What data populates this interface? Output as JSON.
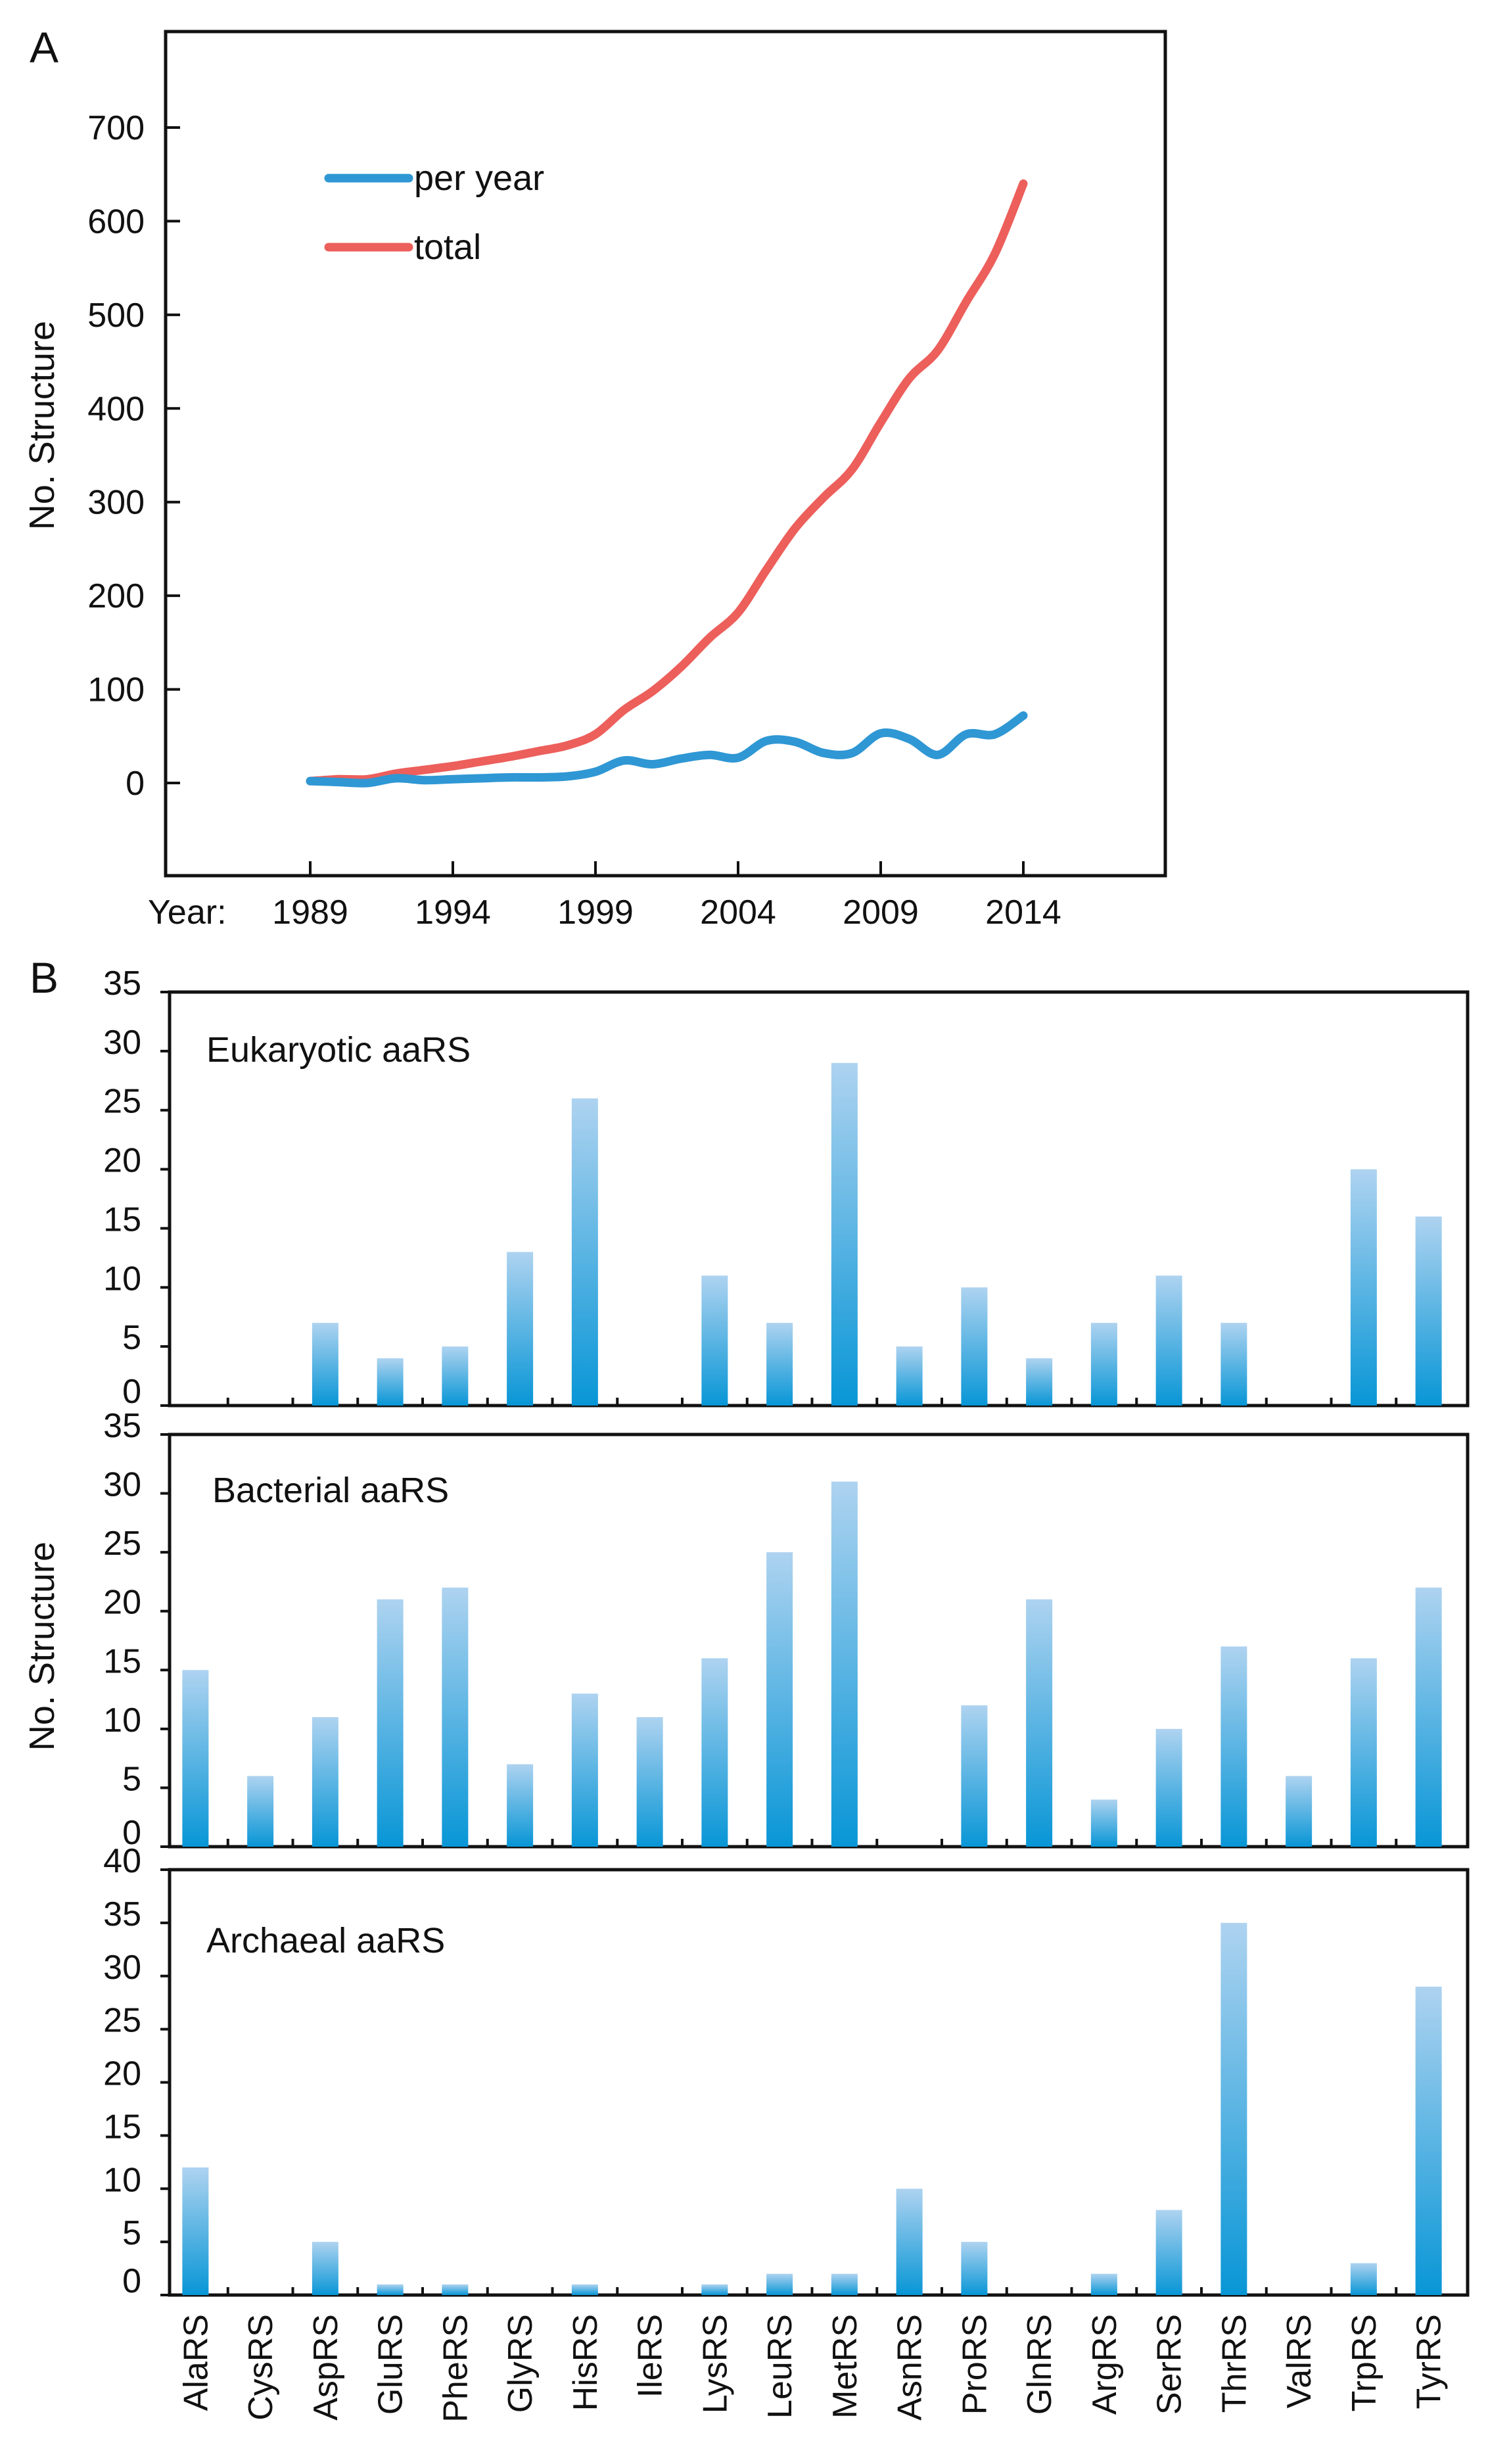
{
  "chart_data": [
    {
      "type": "line",
      "panel_label": "A",
      "ylabel": "No. Structure",
      "xlabel_prefix": "Year:",
      "x": [
        1989,
        1990,
        1991,
        1992,
        1993,
        1994,
        1995,
        1996,
        1997,
        1998,
        1999,
        2000,
        2001,
        2002,
        2003,
        2004,
        2005,
        2006,
        2007,
        2008,
        2009,
        2010,
        2011,
        2012,
        2013,
        2014
      ],
      "xticks": [
        "1989",
        "1994",
        "1999",
        "2004",
        "2009",
        "2014"
      ],
      "yticks": [
        "0",
        "100",
        "200",
        "300",
        "400",
        "500",
        "600",
        "700"
      ],
      "ylim": [
        -100,
        800
      ],
      "xlim": [
        1984,
        2019
      ],
      "legend_position": "top-left",
      "series": [
        {
          "name": "per year",
          "color": "#2f97d4",
          "values": [
            2,
            1,
            0,
            5,
            3,
            4,
            5,
            6,
            6,
            7,
            12,
            24,
            20,
            26,
            30,
            27,
            45,
            44,
            32,
            32,
            53,
            47,
            30,
            52,
            52,
            72
          ]
        },
        {
          "name": "total",
          "color": "#ec5f5b",
          "values": [
            2,
            4,
            4,
            10,
            14,
            18,
            23,
            28,
            34,
            40,
            52,
            78,
            98,
            124,
            155,
            182,
            228,
            272,
            305,
            335,
            385,
            432,
            462,
            514,
            565,
            640
          ]
        }
      ]
    },
    {
      "type": "bar",
      "panel_label": "B",
      "ylabel": "No. Structure",
      "categories": [
        "AlaRS",
        "CysRS",
        "AspRS",
        "GluRS",
        "PheRS",
        "GlyRS",
        "HisRS",
        "IleRS",
        "LysRS",
        "LeuRS",
        "MetRS",
        "AsnRS",
        "ProRS",
        "GlnRS",
        "ArgRS",
        "SerRS",
        "ThrRS",
        "ValRS",
        "TrpRS",
        "TyrRS"
      ],
      "bar_color_top": "#aed3f0",
      "bar_color_bottom": "#0896d6",
      "subplots": [
        {
          "title": "Eukaryotic aaRS",
          "ylim": [
            0,
            35
          ],
          "yticks": [
            "0",
            "5",
            "10",
            "15",
            "20",
            "25",
            "30",
            "35"
          ],
          "values": [
            0,
            0,
            7,
            4,
            5,
            13,
            26,
            0,
            11,
            7,
            29,
            5,
            10,
            4,
            7,
            11,
            7,
            0,
            20,
            16
          ]
        },
        {
          "title": "Bacterial aaRS",
          "ylim": [
            0,
            35
          ],
          "yticks": [
            "0",
            "5",
            "10",
            "15",
            "20",
            "25",
            "30",
            "35"
          ],
          "values": [
            15,
            6,
            11,
            21,
            22,
            7,
            13,
            11,
            16,
            25,
            31,
            0,
            12,
            21,
            4,
            10,
            17,
            6,
            16,
            22
          ]
        },
        {
          "title": "Archaeal aaRS",
          "ylim": [
            0,
            40
          ],
          "yticks": [
            "0",
            "5",
            "10",
            "15",
            "20",
            "25",
            "30",
            "35",
            "40"
          ],
          "values": [
            12,
            0,
            5,
            1,
            1,
            0,
            1,
            0,
            1,
            2,
            2,
            10,
            5,
            0,
            2,
            8,
            35,
            0,
            3,
            29
          ]
        }
      ]
    }
  ]
}
